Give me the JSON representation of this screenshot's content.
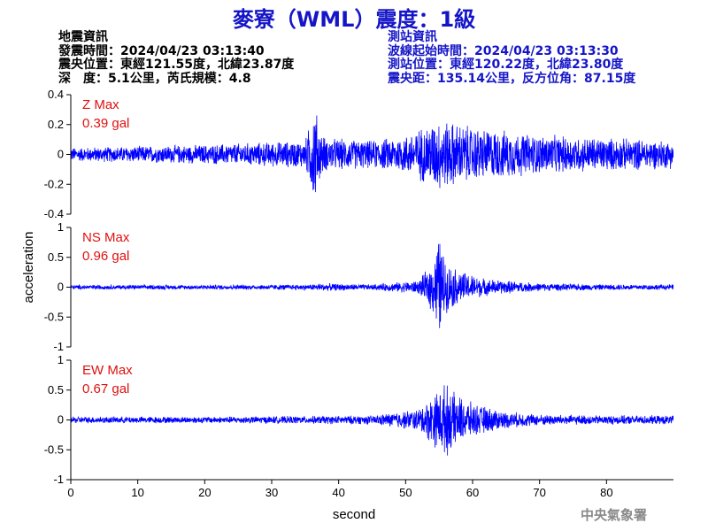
{
  "header": {
    "title": "麥寮（WML）震度：1級"
  },
  "quake_info": {
    "heading": "地震資訊",
    "origin_time": "發震時間：2024/04/23 03:13:40",
    "epicenter": "震央位置：東經121.55度，北緯23.87度",
    "depth_magnitude": "深　度：5.1公里，芮氏規模：4.8"
  },
  "station_info": {
    "heading": "測站資訊",
    "wave_start": "波線起始時間：2024/04/23 03:13:30",
    "location": "測站位置：東經120.22度，北緯23.80度",
    "distance_azimuth": "震央距：135.14公里，反方位角：87.15度"
  },
  "footer": {
    "agency": "中央氣象署"
  },
  "chart_data": {
    "type": "line",
    "color": "#0000ff",
    "xlabel": "second",
    "ylabel": "acceleration",
    "xlim": [
      0,
      90
    ],
    "x_ticks": [
      "0",
      "10",
      "20",
      "30",
      "40",
      "50",
      "60",
      "70",
      "80"
    ],
    "panels": [
      {
        "name": "Z Max",
        "max_value": "0.39 gal",
        "ylim": [
          -0.4,
          0.4
        ],
        "y_ticks": [
          "0.4",
          "0.2",
          "0",
          "-0.2",
          "-0.4"
        ],
        "envelope": {
          "t": [
            0,
            10,
            20,
            30,
            35,
            36,
            36.5,
            37,
            38,
            45,
            50,
            55,
            60,
            70,
            80,
            90
          ],
          "amp": [
            0.05,
            0.06,
            0.07,
            0.09,
            0.1,
            0.28,
            0.38,
            0.2,
            0.12,
            0.1,
            0.14,
            0.26,
            0.2,
            0.14,
            0.12,
            0.1
          ]
        }
      },
      {
        "name": "NS Max",
        "max_value": "0.96 gal",
        "ylim": [
          -1,
          1
        ],
        "y_ticks": [
          "1",
          "0.5",
          "0",
          "-0.5",
          "-1"
        ],
        "envelope": {
          "t": [
            0,
            20,
            36,
            37,
            45,
            52,
            54,
            55,
            56,
            58,
            62,
            70,
            80,
            90
          ],
          "amp": [
            0.04,
            0.04,
            0.05,
            0.07,
            0.05,
            0.12,
            0.45,
            0.96,
            0.45,
            0.3,
            0.15,
            0.07,
            0.05,
            0.05
          ]
        }
      },
      {
        "name": "EW Max",
        "max_value": "0.67 gal",
        "ylim": [
          -1,
          1
        ],
        "y_ticks": [
          "1",
          "0.5",
          "0",
          "-0.5",
          "-1"
        ],
        "envelope": {
          "t": [
            0,
            20,
            35,
            45,
            52,
            54,
            56,
            57,
            60,
            65,
            70,
            80,
            90
          ],
          "amp": [
            0.06,
            0.06,
            0.07,
            0.08,
            0.2,
            0.45,
            0.67,
            0.5,
            0.3,
            0.15,
            0.1,
            0.08,
            0.08
          ]
        }
      }
    ]
  }
}
